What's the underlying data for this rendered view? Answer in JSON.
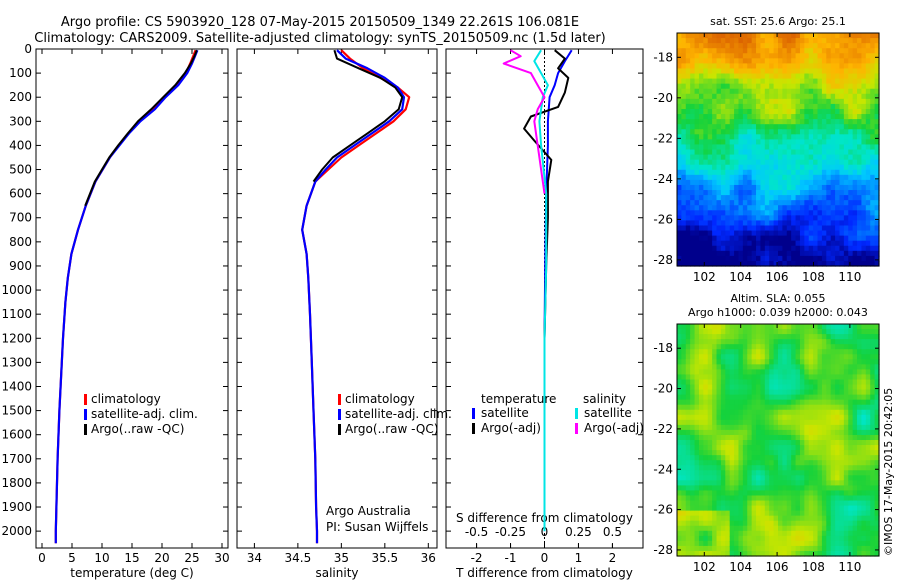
{
  "header": {
    "title_line1": "Argo profile: CS 5903920_128 07-May-2015 20150509_1349 22.261S 106.081E",
    "title_line2": "Climatology: CARS2009. Satellite-adjusted climatology: synTS_20150509.nc (1.5d later)"
  },
  "credit": "©IMOS 17-May-2015 20:42:05",
  "colors": {
    "climatology": "#ff0000",
    "satellite": "#0000ff",
    "argo": "#000000",
    "sal_satellite": "#00e5e5",
    "sal_argo": "#ff00ff"
  },
  "chart_data": [
    {
      "type": "line",
      "name": "temperature",
      "xlabel": "temperature (deg C)",
      "ylabel": "",
      "xlim": [
        -1,
        31
      ],
      "ylim": [
        2070,
        0
      ],
      "xticks": [
        0,
        5,
        10,
        15,
        20,
        25,
        30
      ],
      "yticks": [
        0,
        100,
        200,
        300,
        400,
        500,
        600,
        700,
        800,
        900,
        1000,
        1100,
        1200,
        1300,
        1400,
        1500,
        1600,
        1700,
        1800,
        1900,
        2000
      ],
      "legend": {
        "placement": "lower-center",
        "entries": [
          "climatology",
          "satellite-adj. clim.",
          "Argo(..raw -QC)"
        ]
      },
      "series": [
        {
          "name": "climatology",
          "color": "#ff0000",
          "x": [
            25.6,
            25.2,
            24.7,
            24.0,
            22.5,
            20.5,
            18.6,
            16.2,
            14.4,
            12.8,
            11.3,
            10.1,
            8.9,
            7.3,
            6.0,
            4.9,
            4.3,
            3.9,
            3.5,
            3.3,
            2.9,
            2.6,
            2.4,
            2.3,
            2.3
          ],
          "y": [
            5,
            30,
            60,
            100,
            150,
            200,
            250,
            300,
            350,
            400,
            450,
            500,
            550,
            650,
            750,
            850,
            950,
            1050,
            1200,
            1300,
            1500,
            1700,
            1900,
            2000,
            2050
          ]
        },
        {
          "name": "satellite-adj. clim.",
          "color": "#0000ff",
          "x": [
            25.9,
            25.5,
            25.0,
            24.2,
            22.7,
            20.6,
            18.8,
            16.4,
            14.5,
            12.9,
            11.3,
            10.1,
            8.9,
            7.3,
            6.0,
            4.9,
            4.3,
            3.9,
            3.5,
            3.3,
            2.9,
            2.6,
            2.4,
            2.3,
            2.3
          ],
          "y": [
            5,
            30,
            60,
            100,
            150,
            200,
            250,
            300,
            350,
            400,
            450,
            500,
            550,
            650,
            750,
            850,
            950,
            1050,
            1200,
            1300,
            1500,
            1700,
            1900,
            2000,
            2050
          ]
        },
        {
          "name": "Argo(..raw -QC)",
          "color": "#000000",
          "x": [
            25.8,
            25.4,
            24.8,
            23.8,
            22.2,
            20.2,
            18.2,
            16.0,
            14.3,
            12.7,
            11.2,
            10.0,
            8.8,
            7.2
          ],
          "y": [
            5,
            30,
            60,
            100,
            150,
            200,
            250,
            300,
            350,
            400,
            450,
            500,
            550,
            650
          ]
        }
      ]
    },
    {
      "type": "line",
      "name": "salinity",
      "xlabel": "salinity",
      "ylabel": "",
      "xlim": [
        33.8,
        36.1
      ],
      "ylim": [
        2070,
        0
      ],
      "xticks": [
        34,
        34.5,
        35,
        35.5,
        36
      ],
      "yticks": [
        0,
        100,
        200,
        300,
        400,
        500,
        600,
        700,
        800,
        900,
        1000,
        1100,
        1200,
        1300,
        1400,
        1500,
        1600,
        1700,
        1800,
        1900,
        2000
      ],
      "legend": {
        "placement": "lower-center",
        "entries": [
          "climatology",
          "satellite-adj. clim.",
          "Argo(..raw -QC)"
        ]
      },
      "annotation": [
        "Argo Australia",
        "PI: Susan Wijffels"
      ],
      "series": [
        {
          "name": "climatology",
          "color": "#ff0000",
          "x": [
            35.0,
            35.1,
            35.25,
            35.45,
            35.65,
            35.78,
            35.74,
            35.6,
            35.4,
            35.2,
            35.0,
            34.85,
            34.7,
            34.6,
            34.55,
            34.6,
            34.62,
            34.64,
            34.66,
            34.68,
            34.7,
            34.71,
            34.72,
            34.72
          ],
          "y": [
            5,
            40,
            80,
            120,
            160,
            200,
            250,
            300,
            350,
            400,
            450,
            500,
            550,
            650,
            750,
            850,
            950,
            1100,
            1300,
            1500,
            1700,
            1900,
            2000,
            2050
          ]
        },
        {
          "name": "satellite-adj. clim.",
          "color": "#0000ff",
          "x": [
            34.95,
            35.05,
            35.3,
            35.5,
            35.65,
            35.72,
            35.7,
            35.55,
            35.35,
            35.15,
            34.95,
            34.82,
            34.7,
            34.6,
            34.55,
            34.6,
            34.62,
            34.64,
            34.66,
            34.68,
            34.7,
            34.71,
            34.72,
            34.72
          ],
          "y": [
            5,
            40,
            80,
            120,
            160,
            200,
            250,
            300,
            350,
            400,
            450,
            500,
            550,
            650,
            750,
            850,
            950,
            1100,
            1300,
            1500,
            1700,
            1900,
            2000,
            2050
          ]
        },
        {
          "name": "Argo(..raw -QC)",
          "color": "#000000",
          "x": [
            34.92,
            34.95,
            35.2,
            35.45,
            35.62,
            35.7,
            35.66,
            35.5,
            35.3,
            35.1,
            34.9,
            34.78,
            34.68
          ],
          "y": [
            5,
            40,
            80,
            120,
            160,
            200,
            250,
            300,
            350,
            400,
            450,
            500,
            550
          ]
        }
      ]
    },
    {
      "type": "line",
      "name": "difference",
      "xlabel": "T difference from climatology",
      "xlabel_top": "S difference from climatology",
      "xlim": [
        -2.9,
        2.9
      ],
      "xticks": [
        -2,
        -1,
        0,
        1,
        2
      ],
      "xticks_salinity": [
        "-0.5",
        "-0.25",
        "0",
        "0.25",
        "0.5"
      ],
      "ylim": [
        2070,
        0
      ],
      "yticks": [
        0,
        100,
        200,
        300,
        400,
        500,
        600,
        700,
        800,
        900,
        1000,
        1100,
        1200,
        1300,
        1400,
        1500,
        1600,
        1700,
        1800,
        1900,
        2000
      ],
      "legend": {
        "placement": "lower-center",
        "headers": [
          "temperature",
          "salinity"
        ],
        "entries": [
          "satellite",
          "Argo(-adj)",
          "satellite",
          "Argo(-adj)"
        ]
      },
      "series": [
        {
          "name": "T satellite",
          "color": "#0000ff",
          "x": [
            0.8,
            0.6,
            0.4,
            0.3,
            0.15,
            0.1,
            0.1,
            0.05,
            0.02,
            0,
            0,
            0
          ],
          "y": [
            5,
            50,
            100,
            150,
            200,
            300,
            400,
            600,
            900,
            1200,
            1600,
            2000
          ]
        },
        {
          "name": "T Argo(-adj)",
          "color": "#000000",
          "x": [
            0.3,
            0.6,
            0.4,
            0.7,
            0.6,
            0.4,
            -0.4,
            -0.6,
            -0.3,
            0.2,
            0.1,
            0.1,
            0.05,
            0,
            0
          ],
          "y": [
            5,
            40,
            80,
            120,
            180,
            240,
            280,
            330,
            380,
            460,
            550,
            700,
            900,
            1200,
            1600
          ]
        },
        {
          "name": "S satellite",
          "color": "#00e5e5",
          "x": [
            -0.1,
            -0.3,
            -0.1,
            0.1,
            -0.05,
            -0.15,
            -0.1,
            0.05,
            0.05,
            0,
            0,
            0
          ],
          "y": [
            5,
            50,
            100,
            150,
            200,
            300,
            400,
            600,
            900,
            1200,
            1600,
            2000
          ]
        },
        {
          "name": "S Argo(-adj)",
          "color": "#ff00ff",
          "x": [
            -1.0,
            -0.7,
            -1.2,
            -0.4,
            -0.2,
            0.0,
            -0.2,
            -0.3,
            -0.2,
            -0.1,
            0.0
          ],
          "y": [
            5,
            30,
            60,
            100,
            150,
            200,
            250,
            300,
            400,
            500,
            600
          ]
        }
      ]
    },
    {
      "type": "heatmap",
      "name": "sst-map",
      "title": "sat. SST: 25.6  Argo: 25.1",
      "xlim": [
        100.5,
        111.6
      ],
      "ylim": [
        -28.3,
        -16.8
      ],
      "xticks": [
        102,
        104,
        106,
        108,
        110
      ],
      "yticks": [
        -18,
        -20,
        -22,
        -24,
        -26,
        -28
      ]
    },
    {
      "type": "heatmap",
      "name": "sla-map",
      "title_line1": "Altim. SLA: 0.055",
      "title_line2": "Argo h1000: 0.039  h2000: 0.043",
      "xlim": [
        100.5,
        111.6
      ],
      "ylim": [
        -28.3,
        -16.8
      ],
      "xticks": [
        102,
        104,
        106,
        108,
        110
      ],
      "yticks": [
        -18,
        -20,
        -22,
        -24,
        -26,
        -28
      ]
    }
  ]
}
